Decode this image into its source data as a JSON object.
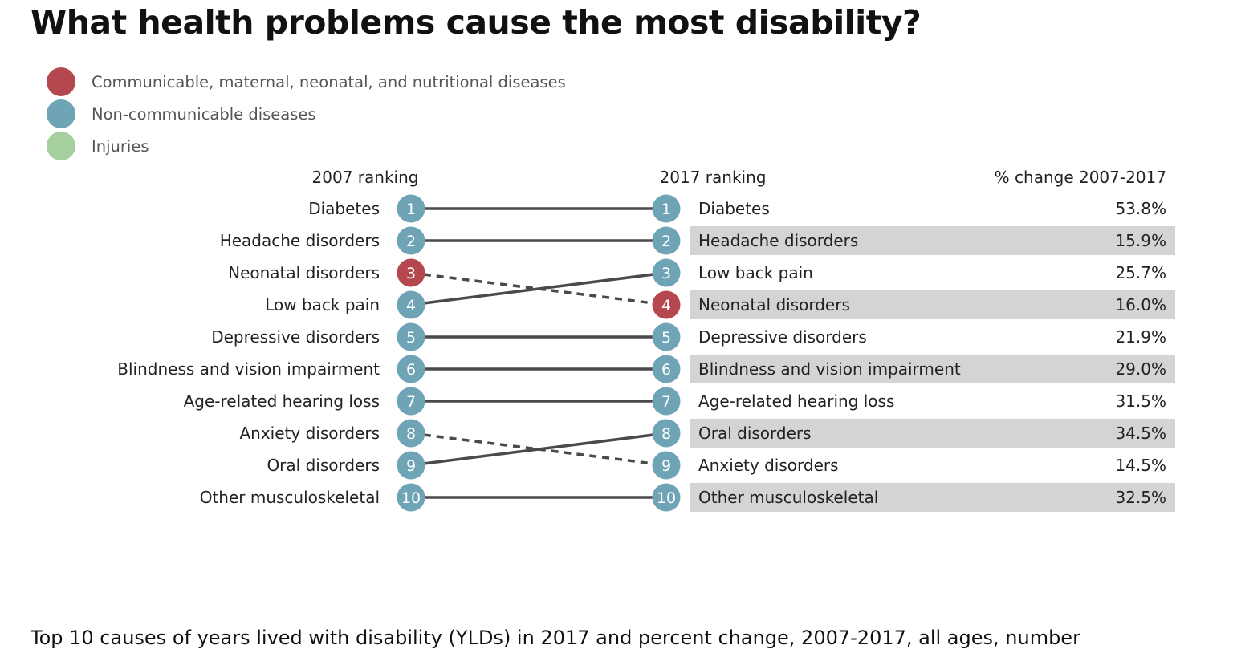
{
  "title": "What health problems cause the most disability?",
  "subtitle": "Top 10 causes of years lived with disability (YLDs) in 2017 and percent change, 2007-2017, all ages, number",
  "legend": [
    {
      "label": "Communicable, maternal, neonatal, and nutritional diseases",
      "color": "#b5474f"
    },
    {
      "label": "Non-communicable diseases",
      "color": "#6fa3b6"
    },
    {
      "label": "Injuries",
      "color": "#a6cf9e"
    }
  ],
  "chart_data": {
    "type": "table",
    "headers": {
      "left": "2007 ranking",
      "middle": "2017 ranking",
      "right": "% change 2007-2017"
    },
    "rank_2007": [
      {
        "rank": "1",
        "cause": "Diabetes",
        "group": "ncd"
      },
      {
        "rank": "2",
        "cause": "Headache disorders",
        "group": "ncd"
      },
      {
        "rank": "3",
        "cause": "Neonatal disorders",
        "group": "cmnn"
      },
      {
        "rank": "4",
        "cause": "Low back pain",
        "group": "ncd"
      },
      {
        "rank": "5",
        "cause": "Depressive disorders",
        "group": "ncd"
      },
      {
        "rank": "6",
        "cause": "Blindness and vision impairment",
        "group": "ncd"
      },
      {
        "rank": "7",
        "cause": "Age-related hearing loss",
        "group": "ncd"
      },
      {
        "rank": "8",
        "cause": "Anxiety disorders",
        "group": "ncd"
      },
      {
        "rank": "9",
        "cause": "Oral disorders",
        "group": "ncd"
      },
      {
        "rank": "10",
        "cause": "Other musculoskeletal",
        "group": "ncd"
      }
    ],
    "rank_2017": [
      {
        "rank": "1",
        "cause": "Diabetes",
        "group": "ncd",
        "change": "53.8%"
      },
      {
        "rank": "2",
        "cause": "Headache disorders",
        "group": "ncd",
        "change": "15.9%"
      },
      {
        "rank": "3",
        "cause": "Low back pain",
        "group": "ncd",
        "change": "25.7%"
      },
      {
        "rank": "4",
        "cause": "Neonatal disorders",
        "group": "cmnn",
        "change": "16.0%"
      },
      {
        "rank": "5",
        "cause": "Depressive disorders",
        "group": "ncd",
        "change": "21.9%"
      },
      {
        "rank": "6",
        "cause": "Blindness and vision impairment",
        "group": "ncd",
        "change": "29.0%"
      },
      {
        "rank": "7",
        "cause": "Age-related hearing loss",
        "group": "ncd",
        "change": "31.5%"
      },
      {
        "rank": "8",
        "cause": "Oral disorders",
        "group": "ncd",
        "change": "34.5%"
      },
      {
        "rank": "9",
        "cause": "Anxiety disorders",
        "group": "ncd",
        "change": "14.5%"
      },
      {
        "rank": "10",
        "cause": "Other musculoskeletal",
        "group": "ncd",
        "change": "32.5%"
      }
    ],
    "connections": [
      {
        "from": 1,
        "to": 1,
        "style": "solid"
      },
      {
        "from": 2,
        "to": 2,
        "style": "solid"
      },
      {
        "from": 3,
        "to": 4,
        "style": "dashed"
      },
      {
        "from": 4,
        "to": 3,
        "style": "solid"
      },
      {
        "from": 5,
        "to": 5,
        "style": "solid"
      },
      {
        "from": 6,
        "to": 6,
        "style": "solid"
      },
      {
        "from": 7,
        "to": 7,
        "style": "solid"
      },
      {
        "from": 8,
        "to": 9,
        "style": "dashed"
      },
      {
        "from": 9,
        "to": 8,
        "style": "solid"
      },
      {
        "from": 10,
        "to": 10,
        "style": "solid"
      }
    ],
    "group_colors": {
      "cmnn": "#b5474f",
      "ncd": "#6fa3b6",
      "inj": "#a6cf9e"
    },
    "row_shading": "#d4d4d4",
    "line_color": "#4a4a4a"
  }
}
